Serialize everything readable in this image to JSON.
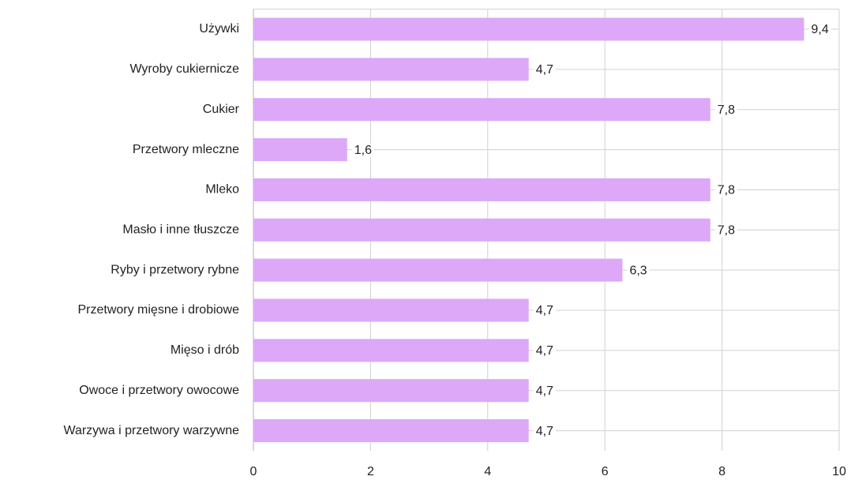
{
  "chart_data": {
    "type": "barh",
    "categories": [
      "Używki",
      "Wyroby cukiernicze",
      "Cukier",
      "Przetwory mleczne",
      "Mleko",
      "Masło i inne tłuszcze",
      "Ryby i przetwory rybne",
      "Przetwory mięsne i drobiowe",
      "Mięso i drób",
      "Owoce i przetwory owocowe",
      "Warzywa i przetwory warzywne"
    ],
    "values": [
      9.4,
      4.7,
      7.8,
      1.6,
      7.8,
      7.8,
      6.3,
      4.7,
      4.7,
      4.7,
      4.7
    ],
    "value_labels": [
      "9,4",
      "4,7",
      "7,8",
      "1,6",
      "7,8",
      "7,8",
      "6,3",
      "4,7",
      "4,7",
      "4,7",
      "4,7"
    ],
    "color": "#dda8f8",
    "xlim": [
      0,
      10
    ],
    "xticks": [
      0,
      2,
      4,
      6,
      8,
      10
    ],
    "grid": true
  }
}
